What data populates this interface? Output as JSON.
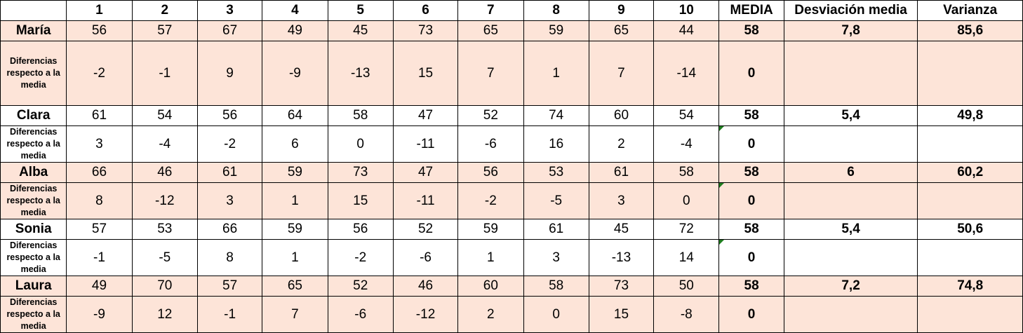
{
  "headers": [
    "",
    "1",
    "2",
    "3",
    "4",
    "5",
    "6",
    "7",
    "8",
    "9",
    "10",
    "MEDIA",
    "Desviación media",
    "Varianza"
  ],
  "students": [
    {
      "name": "María",
      "values": [
        "56",
        "57",
        "67",
        "49",
        "45",
        "73",
        "65",
        "59",
        "65",
        "44"
      ],
      "media": "58",
      "desviacion": "7,8",
      "varianza": "85,6",
      "diff_label": "Diferencias respecto a la media",
      "diffs": [
        "-2",
        "-1",
        "9",
        "-9",
        "-13",
        "15",
        "7",
        "1",
        "7",
        "-14"
      ],
      "diff_media": "0",
      "comment_marker": false
    },
    {
      "name": "Clara",
      "values": [
        "61",
        "54",
        "56",
        "64",
        "58",
        "47",
        "52",
        "74",
        "60",
        "54"
      ],
      "media": "58",
      "desviacion": "5,4",
      "varianza": "49,8",
      "diff_label": "Diferencias respecto a la media",
      "diffs": [
        "3",
        "-4",
        "-2",
        "6",
        "0",
        "-11",
        "-6",
        "16",
        "2",
        "-4"
      ],
      "diff_media": "0",
      "comment_marker": true
    },
    {
      "name": "Alba",
      "values": [
        "66",
        "46",
        "61",
        "59",
        "73",
        "47",
        "56",
        "53",
        "61",
        "58"
      ],
      "media": "58",
      "desviacion": "6",
      "varianza": "60,2",
      "diff_label": "Diferencias respecto a la media",
      "diffs": [
        "8",
        "-12",
        "3",
        "1",
        "15",
        "-11",
        "-2",
        "-5",
        "3",
        "0"
      ],
      "diff_media": "0",
      "comment_marker": true
    },
    {
      "name": "Sonia",
      "values": [
        "57",
        "53",
        "66",
        "59",
        "56",
        "52",
        "59",
        "61",
        "45",
        "72"
      ],
      "media": "58",
      "desviacion": "5,4",
      "varianza": "50,6",
      "diff_label": "Diferencias respecto a la media",
      "diffs": [
        "-1",
        "-5",
        "8",
        "1",
        "-2",
        "-6",
        "1",
        "3",
        "-13",
        "14"
      ],
      "diff_media": "0",
      "comment_marker": true
    },
    {
      "name": "Laura",
      "values": [
        "49",
        "70",
        "57",
        "65",
        "52",
        "46",
        "60",
        "58",
        "73",
        "50"
      ],
      "media": "58",
      "desviacion": "7,2",
      "varianza": "74,8",
      "diff_label": "Diferencias respecto a la media",
      "diffs": [
        "-9",
        "12",
        "-1",
        "7",
        "-6",
        "-12",
        "2",
        "0",
        "15",
        "-8"
      ],
      "diff_media": "0",
      "comment_marker": false
    }
  ],
  "colors": {
    "pink_fill": "#fde4d8",
    "white_fill": "#ffffff",
    "grid": "#000000",
    "comment_marker": "#1f7d1f"
  }
}
